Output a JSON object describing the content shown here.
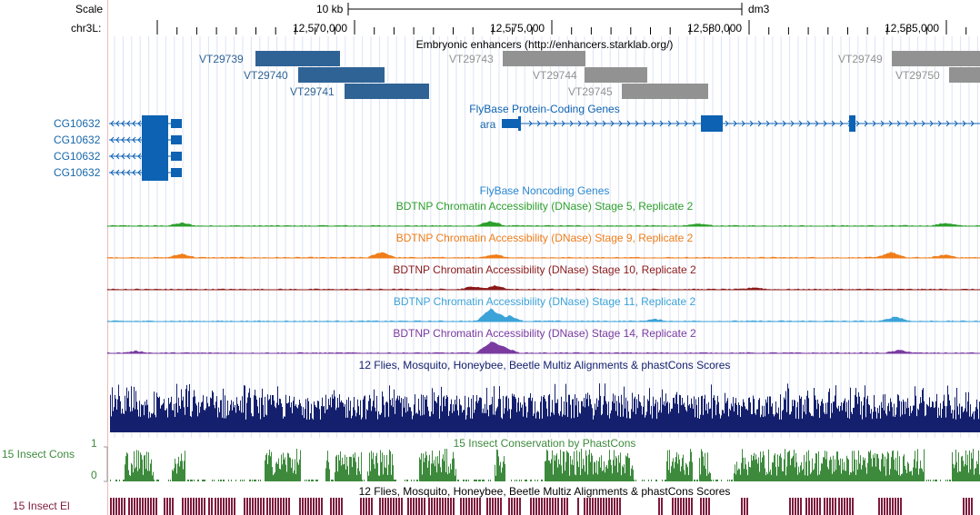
{
  "header": {
    "scale_label": "Scale",
    "scale_text": "10 kb",
    "assembly": "dm3",
    "chrom_label": "chr3L:",
    "positions": [
      "12,570,000",
      "12,575,000",
      "12,580,000",
      "12,585,000"
    ]
  },
  "enhancers": {
    "title": "Embryonic enhancers (http://enhancers.starklab.org/)",
    "items": [
      {
        "name": "VT29739",
        "active": true
      },
      {
        "name": "VT29740",
        "active": true
      },
      {
        "name": "VT29741",
        "active": true
      },
      {
        "name": "VT29743",
        "active": false
      },
      {
        "name": "VT29744",
        "active": false
      },
      {
        "name": "VT29745",
        "active": false
      },
      {
        "name": "VT29749",
        "active": false
      },
      {
        "name": "VT29750",
        "active": false
      }
    ]
  },
  "genes": {
    "title": "FlyBase Protein-Coding Genes",
    "left_gene": "CG10632",
    "right_gene": "ara"
  },
  "noncoding_title": "FlyBase Noncoding Genes",
  "dnase_tracks": [
    {
      "title": "BDTNP Chromatin Accessibility (DNase) Stage 5, Replicate 2",
      "color": "#2ca02c"
    },
    {
      "title": "BDTNP Chromatin Accessibility (DNase) Stage 9, Replicate 2",
      "color": "#f07d19"
    },
    {
      "title": "BDTNP Chromatin Accessibility (DNase) Stage 10, Replicate 2",
      "color": "#8b1a1a"
    },
    {
      "title": "BDTNP Chromatin Accessibility (DNase) Stage 11, Replicate 2",
      "color": "#3ba3d8"
    },
    {
      "title": "BDTNP Chromatin Accessibility (DNase) Stage 14, Replicate 2",
      "color": "#7a3aa0"
    }
  ],
  "multiz_title": "12 Flies, Mosquito, Honeybee, Beetle Multiz Alignments & phastCons Scores",
  "phastcons": {
    "title": "15 Insect Conservation by PhastCons",
    "side_label": "15 Insect Cons",
    "ymax": "1",
    "ymin": "0"
  },
  "elements": {
    "title": "12 Flies, Mosquito, Honeybee, Beetle Multiz Alignments & phastCons Scores",
    "side_label": "15 Insect El"
  },
  "colors": {
    "enhancer_active": "#2f6396",
    "enhancer_inactive": "#929292",
    "gene": "#0d62b3",
    "noncoding_title": "#2a87d1",
    "multiz": "#14206e",
    "phastcons": "#3d8a3d",
    "elements": "#7e1a3c",
    "gene_label": "#1767aa"
  }
}
